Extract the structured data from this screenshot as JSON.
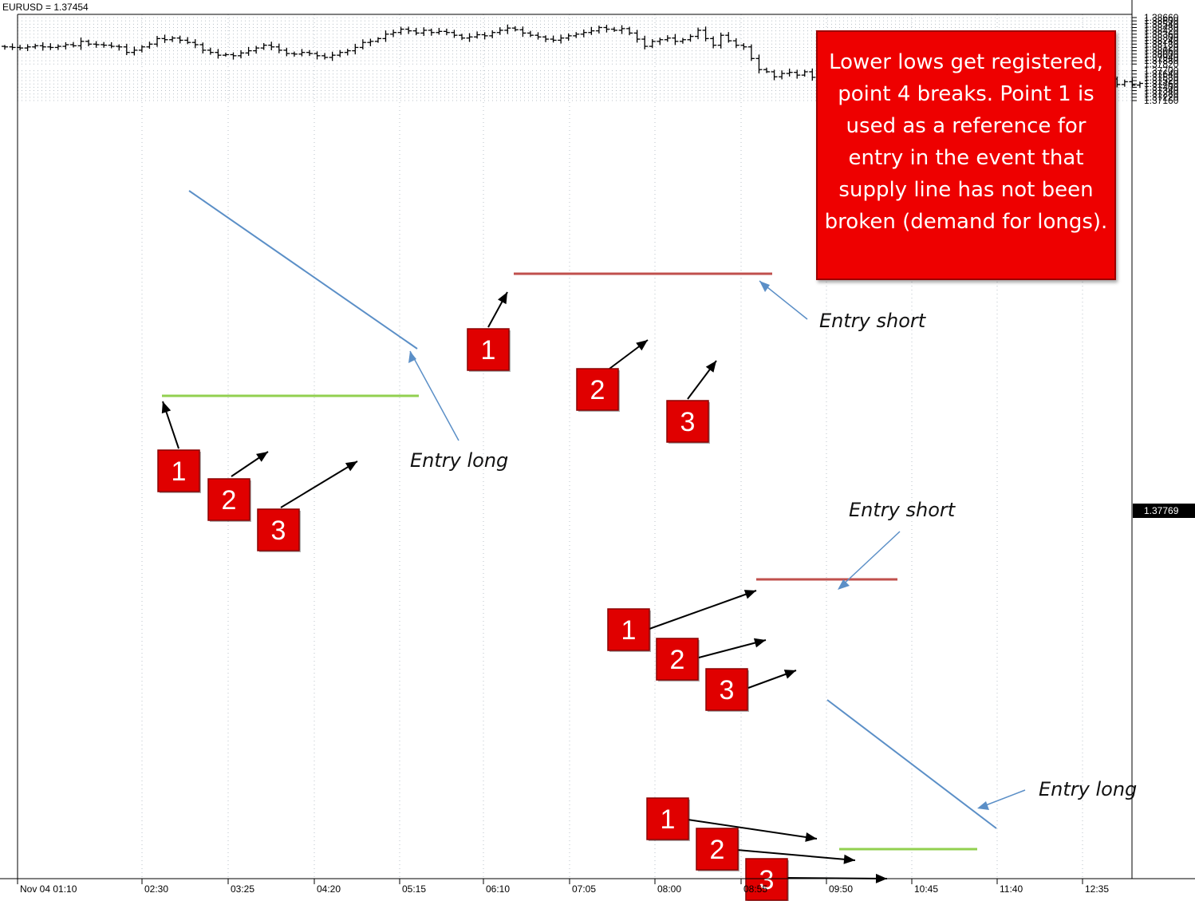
{
  "symbol_label": "EURUSD = 1.37454",
  "current_price_label": "1.37769",
  "callout_text": "Lower lows get registered, point 4 breaks. Point 1 is used as a reference for entry in the event that supply line has not been broken (demand for longs).",
  "colors": {
    "background": "#ffffff",
    "bars": "#000000",
    "grid": "#b8c0c8",
    "trend_line": "#5b8fc7",
    "supply_line": "#c0504d",
    "demand_line": "#92d050",
    "number_box": "#e00000",
    "callout": "#ee0000"
  },
  "annotations": [
    {
      "text": "Entry long"
    },
    {
      "text": "Entry short"
    },
    {
      "text": "Entry short"
    },
    {
      "text": "Entry long"
    }
  ],
  "number_labels": [
    "1",
    "2",
    "3",
    "1",
    "2",
    "3",
    "1",
    "2",
    "3",
    "1",
    "2",
    "3"
  ],
  "chart_data": {
    "type": "ohlc",
    "title": "EURUSD = 1.37454",
    "y_axis_position": "right",
    "ylim": [
      1.3708,
      1.3871
    ],
    "y_ticks": [
      "1.38660",
      "1.38600",
      "1.38540",
      "1.38480",
      "1.38420",
      "1.38360",
      "1.38300",
      "1.38240",
      "1.38180",
      "1.38120",
      "1.38060",
      "1.38000",
      "1.37940",
      "1.37880",
      "1.37820",
      "1.37769",
      "1.37700",
      "1.37640",
      "1.37580",
      "1.37520",
      "1.37460",
      "1.37400",
      "1.37340",
      "1.37280",
      "1.37220",
      "1.37160"
    ],
    "x_ticks": [
      "Nov 04 01:10",
      "02:30",
      "03:25",
      "04:20",
      "05:15",
      "06:10",
      "07:05",
      "08:00",
      "08:55",
      "09:50",
      "10:45",
      "11:40",
      "12:35"
    ],
    "grid": true,
    "closes": [
      1.3813,
      1.3812,
      1.3811,
      1.3813,
      1.3815,
      1.3813,
      1.3812,
      1.3814,
      1.3817,
      1.3815,
      1.3823,
      1.3818,
      1.3817,
      1.3816,
      1.3814,
      1.3813,
      1.3803,
      1.3807,
      1.3813,
      1.3818,
      1.3828,
      1.3826,
      1.3829,
      1.3825,
      1.3821,
      1.3817,
      1.3807,
      1.3803,
      1.3798,
      1.3799,
      1.3797,
      1.3802,
      1.3806,
      1.3811,
      1.3816,
      1.3813,
      1.3807,
      1.3801,
      1.38,
      1.3803,
      1.3801,
      1.3797,
      1.3794,
      1.3798,
      1.3803,
      1.3806,
      1.3812,
      1.3821,
      1.3823,
      1.3828,
      1.3836,
      1.3839,
      1.3845,
      1.3842,
      1.3838,
      1.3843,
      1.3839,
      1.3841,
      1.3839,
      1.3834,
      1.3829,
      1.3831,
      1.3835,
      1.3833,
      1.3839,
      1.3843,
      1.3847,
      1.3844,
      1.3838,
      1.3834,
      1.3831,
      1.3827,
      1.3825,
      1.3829,
      1.3833,
      1.3836,
      1.3839,
      1.3842,
      1.3848,
      1.3845,
      1.3843,
      1.3846,
      1.3838,
      1.3827,
      1.3814,
      1.3823,
      1.3826,
      1.3829,
      1.3823,
      1.3826,
      1.3832,
      1.3843,
      1.3828,
      1.3816,
      1.3834,
      1.3824,
      1.3816,
      1.3813,
      1.3792,
      1.3772,
      1.3768,
      1.3759,
      1.3765,
      1.3767,
      1.3762,
      1.3768,
      1.3758,
      1.3767,
      1.3749,
      1.3743,
      1.3729,
      1.3725,
      1.3732,
      1.3728,
      1.3723,
      1.3719,
      1.3724,
      1.3731,
      1.3725,
      1.3717,
      1.3724,
      1.3735,
      1.3731,
      1.3742,
      1.3736,
      1.3744,
      1.3739,
      1.3747,
      1.3741,
      1.3735,
      1.3744,
      1.3748,
      1.3746,
      1.3751,
      1.3758,
      1.3755,
      1.3761,
      1.3759,
      1.3757,
      1.3763,
      1.3756,
      1.3752,
      1.3758,
      1.375,
      1.3748,
      1.3755,
      1.3745,
      1.375,
      1.3744,
      1.3747
    ]
  }
}
